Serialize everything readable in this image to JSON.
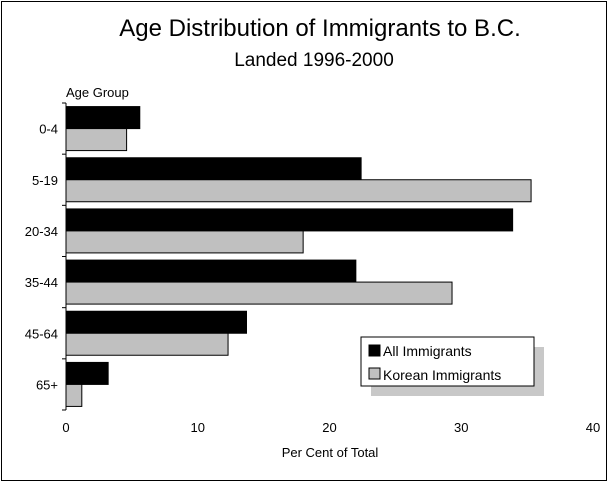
{
  "chart_data": {
    "type": "bar",
    "orientation": "horizontal",
    "title": "Age Distribution of  Immigrants to B.C.",
    "subtitle": "Landed 1996-2000",
    "ylabel": "Age Group",
    "xlabel": "Per Cent of Total",
    "categories": [
      "0-4",
      "5-19",
      "20-34",
      "35-44",
      "45-64",
      "65+"
    ],
    "series": [
      {
        "name": "All Immigrants",
        "values": [
          5.6,
          22.4,
          33.9,
          22.0,
          13.7,
          3.2
        ],
        "color": "#000000"
      },
      {
        "name": "Korean Immigrants",
        "values": [
          4.6,
          35.3,
          18.0,
          29.3,
          12.3,
          1.2
        ],
        "color": "#c0c0c0"
      }
    ],
    "xlim": [
      0,
      40
    ],
    "xticks": [
      "0",
      "10",
      "20",
      "30",
      "40"
    ],
    "grid": false,
    "legend": "bottom-right"
  }
}
